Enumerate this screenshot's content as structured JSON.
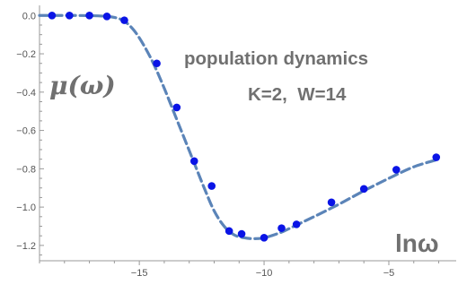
{
  "chart_data": {
    "type": "scatter",
    "title": "",
    "xlabel": "lnω",
    "ylabel": "μ(ω)",
    "xlim": [
      -19,
      -2.3
    ],
    "ylim": [
      -1.28,
      0.02
    ],
    "x_ticks": [
      -15,
      -10,
      -5
    ],
    "x_tick_labels": [
      "−15",
      "−10",
      "−5"
    ],
    "y_ticks": [
      0.0,
      -0.2,
      -0.4,
      -0.6,
      -0.8,
      -1.0,
      -1.2
    ],
    "y_tick_labels": [
      "0.0",
      "−0.2",
      "−0.4",
      "−0.6",
      "−0.8",
      "−1.0",
      "−1.2"
    ],
    "annotations": [
      "population dynamics",
      "K=2,  W=14"
    ],
    "series": [
      {
        "style": "dashed line",
        "color": "#5b84b8",
        "x": [
          -19,
          -17.5,
          -16.5,
          -16.0,
          -15.6,
          -15.2,
          -14.8,
          -14.4,
          -14.0,
          -13.6,
          -13.2,
          -12.8,
          -12.4,
          -12.0,
          -11.6,
          -11.2,
          -10.8,
          -10.4,
          -10.0,
          -9.6,
          -9.2,
          -8.8,
          -8.0,
          -7.0,
          -6.0,
          -5.0,
          -4.0,
          -3.0
        ],
        "y": [
          0.0,
          0.0,
          -0.003,
          -0.01,
          -0.03,
          -0.08,
          -0.16,
          -0.26,
          -0.38,
          -0.51,
          -0.64,
          -0.77,
          -0.9,
          -1.02,
          -1.1,
          -1.145,
          -1.16,
          -1.165,
          -1.16,
          -1.145,
          -1.125,
          -1.1,
          -1.05,
          -0.985,
          -0.915,
          -0.85,
          -0.79,
          -0.75
        ]
      },
      {
        "style": "points",
        "color": "#0a14e6",
        "x": [
          -18.5,
          -17.8,
          -17.0,
          -16.3,
          -15.6,
          -14.3,
          -13.5,
          -12.8,
          -12.1,
          -11.4,
          -10.9,
          -10.0,
          -9.3,
          -8.7,
          -7.3,
          -6.0,
          -4.7,
          -3.1
        ],
        "y": [
          0.0,
          0.0,
          0.0,
          -0.005,
          -0.025,
          -0.25,
          -0.48,
          -0.76,
          -0.89,
          -1.125,
          -1.14,
          -1.16,
          -1.11,
          -1.09,
          -0.975,
          -0.905,
          -0.805,
          -0.74
        ]
      }
    ]
  }
}
